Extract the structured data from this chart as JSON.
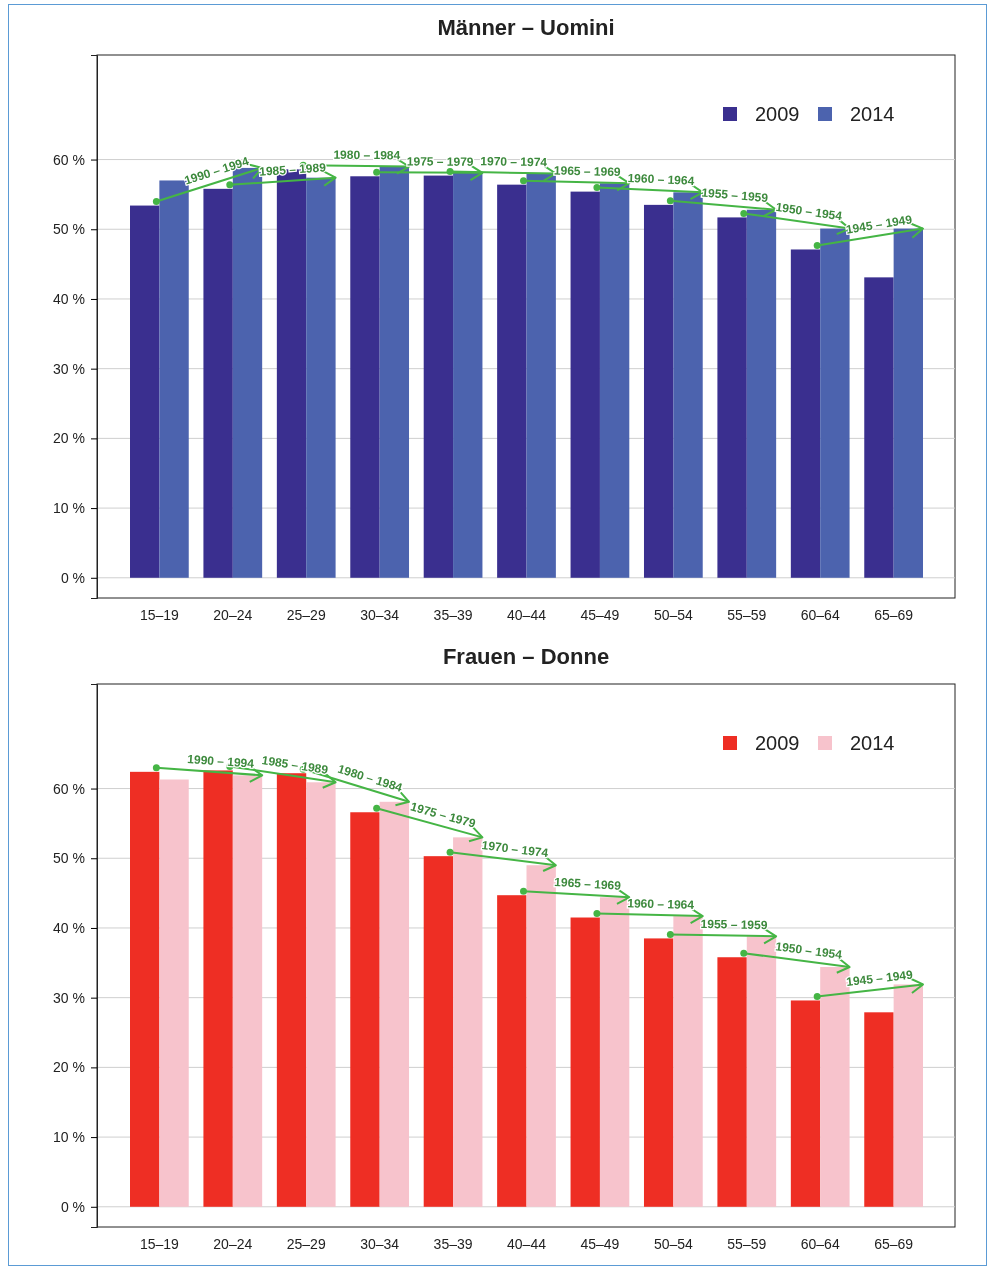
{
  "chart_data": [
    {
      "type": "bar",
      "title": "Männer – Uomini",
      "categories": [
        "15–19",
        "20–24",
        "25–29",
        "30–34",
        "35–39",
        "40–44",
        "45–49",
        "50–54",
        "55–59",
        "60–64",
        "65–69"
      ],
      "series": [
        {
          "name": "2009",
          "color": "#3a2f8f",
          "values": [
            53.4,
            55.8,
            58.6,
            57.6,
            57.7,
            56.4,
            55.4,
            53.5,
            51.7,
            47.1,
            43.1
          ]
        },
        {
          "name": "2014",
          "color": "#4c63ae",
          "values": [
            57.0,
            58.8,
            57.4,
            59.0,
            58.1,
            58.0,
            56.6,
            55.3,
            52.8,
            50.1,
            50.1
          ]
        }
      ],
      "ylim": [
        -2.9,
        75
      ],
      "yticks": [
        {
          "value": 0,
          "label": "0 %"
        },
        {
          "value": 10,
          "label": "10 %"
        },
        {
          "value": 20,
          "label": "20 %"
        },
        {
          "value": 30,
          "label": "30 %"
        },
        {
          "value": 40,
          "label": "40 %"
        },
        {
          "value": 50,
          "label": "50 %"
        },
        {
          "value": 60,
          "label": "60 %"
        }
      ],
      "grid": "y",
      "legend": "top right",
      "annotations": [
        {
          "text": "1990 – 1994",
          "x": "15–19",
          "y": 53.4
        },
        {
          "text": "1985 – 1989",
          "x": "20–24",
          "y": 55.8
        },
        {
          "text": "1980 – 1984",
          "x": "25–29",
          "y": 58.6
        },
        {
          "text": "1975 – 1979",
          "x": "30–34",
          "y": 57.6
        },
        {
          "text": "1970 – 1974",
          "x": "35–39",
          "y": 57.7
        },
        {
          "text": "1965 – 1969",
          "x": "40–44",
          "y": 56.4
        },
        {
          "text": "1960 – 1964",
          "x": "45–49",
          "y": 55.4
        },
        {
          "text": "1955 – 1959",
          "x": "50–54",
          "y": 53.5
        },
        {
          "text": "1950 – 1954",
          "x": "55–59",
          "y": 51.7
        },
        {
          "text": "1945 – 1949",
          "x": "60–64",
          "y": 47.1
        }
      ]
    },
    {
      "type": "bar",
      "title": "Frauen – Donne",
      "categories": [
        "15–19",
        "20–24",
        "25–29",
        "30–34",
        "35–39",
        "40–44",
        "45–49",
        "50–54",
        "55–59",
        "60–64",
        "65–69"
      ],
      "series": [
        {
          "name": "2009",
          "color": "#ee2e24",
          "values": [
            62.4,
            62.6,
            62.2,
            56.6,
            50.3,
            44.7,
            41.5,
            38.5,
            35.8,
            29.6,
            27.9
          ]
        },
        {
          "name": "2014",
          "color": "#f7c3cc",
          "values": [
            61.3,
            61.9,
            60.9,
            58.1,
            53.0,
            49.0,
            44.4,
            41.7,
            38.8,
            34.4,
            31.9
          ]
        }
      ],
      "ylim": [
        -2.9,
        75
      ],
      "yticks": [
        {
          "value": 0,
          "label": "0 %"
        },
        {
          "value": 10,
          "label": "10 %"
        },
        {
          "value": 20,
          "label": "20 %"
        },
        {
          "value": 30,
          "label": "30 %"
        },
        {
          "value": 40,
          "label": "40 %"
        },
        {
          "value": 50,
          "label": "50 %"
        },
        {
          "value": 60,
          "label": "60 %"
        }
      ],
      "grid": "y",
      "legend": "top right",
      "annotations": [
        {
          "text": "1990 – 1994",
          "x": "15–19",
          "y": 62.4
        },
        {
          "text": "1985 – 1989",
          "x": "20–24",
          "y": 62.6
        },
        {
          "text": "1980 – 1984",
          "x": "25–29",
          "y": 62.2
        },
        {
          "text": "1975 – 1979",
          "x": "30–34",
          "y": 56.6
        },
        {
          "text": "1970 – 1974",
          "x": "35–39",
          "y": 50.3
        },
        {
          "text": "1965 – 1969",
          "x": "40–44",
          "y": 44.7
        },
        {
          "text": "1960 – 1964",
          "x": "45–49",
          "y": 41.5
        },
        {
          "text": "1955 – 1959",
          "x": "50–54",
          "y": 38.5
        },
        {
          "text": "1950 – 1954",
          "x": "55–59",
          "y": 35.8
        },
        {
          "text": "1945 – 1949",
          "x": "60–64",
          "y": 29.6
        }
      ]
    }
  ]
}
